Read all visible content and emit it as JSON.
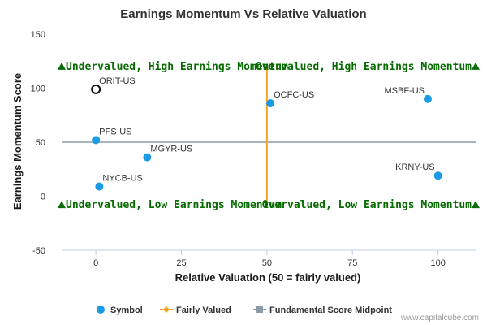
{
  "chart_data": {
    "type": "scatter",
    "title": "Earnings Momentum Vs Relative Valuation",
    "xlabel": "Relative Valuation (50 = fairly valued)",
    "ylabel": "Earnings Momentum Score",
    "xlim": [
      -10,
      111
    ],
    "ylim": [
      -50,
      150
    ],
    "x_ticks": [
      0,
      25,
      50,
      75,
      100
    ],
    "y_ticks": [
      -50,
      0,
      50,
      100,
      150
    ],
    "grid": "none",
    "legend_position": "bottom",
    "points": [
      {
        "label": "ORIT-US",
        "x": 0,
        "y": 99,
        "hollow": true
      },
      {
        "label": "OCFC-US",
        "x": 51,
        "y": 86
      },
      {
        "label": "MSBF-US",
        "x": 97,
        "y": 90
      },
      {
        "label": "PFS-US",
        "x": 0,
        "y": 52
      },
      {
        "label": "MGYR-US",
        "x": 15,
        "y": 36
      },
      {
        "label": "KRNY-US",
        "x": 100,
        "y": 19
      },
      {
        "label": "NYCB-US",
        "x": 1,
        "y": 9
      }
    ],
    "fair_value_line": {
      "x": 50,
      "y_range": [
        -8,
        121
      ]
    },
    "midpoint_line": {
      "y": 50,
      "x_range": [
        -10,
        111
      ]
    },
    "quadrant_labels": {
      "top_left": "Undervalued, High Earnings Momentum",
      "top_right": "Overvalued, High Earnings Momentum",
      "bottom_left": "Undervalued, Low Earnings Momentum",
      "bottom_right": "Overvalued, Low Earnings Momentum"
    },
    "legend": [
      {
        "name": "Symbol",
        "kind": "dot"
      },
      {
        "name": "Fairly Valued",
        "kind": "line-diamond"
      },
      {
        "name": "Fundamental Score Midpoint",
        "kind": "line-square"
      }
    ],
    "colors": {
      "point": "#1a9be6",
      "fair_value": "#f5a623",
      "midpoint": "#8d9ba8",
      "quadrant_text": "#066b00",
      "marker": "#0a6b0a"
    }
  },
  "credit": "www.capitalcube.com"
}
